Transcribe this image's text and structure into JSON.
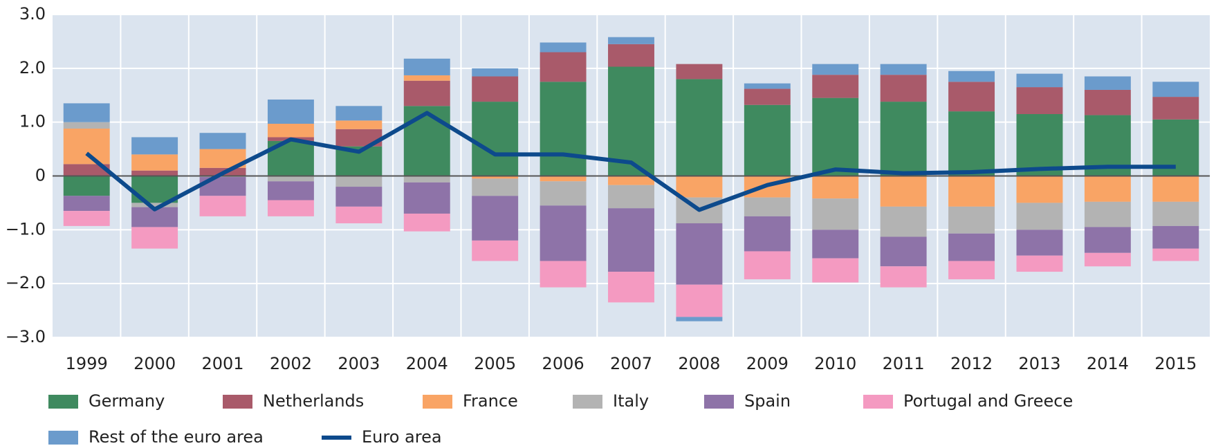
{
  "chart_data": {
    "type": "bar",
    "stacked": true,
    "grid": true,
    "categories": [
      "1999",
      "2000",
      "2001",
      "2002",
      "2003",
      "2004",
      "2005",
      "2006",
      "2007",
      "2008",
      "2009",
      "2010",
      "2011",
      "2012",
      "2013",
      "2014",
      "2015"
    ],
    "ylim": [
      -3,
      3
    ],
    "yticks": [
      {
        "value": -3,
        "label": "−3.0"
      },
      {
        "value": -2,
        "label": "−2.0"
      },
      {
        "value": -1,
        "label": "−1.0"
      },
      0,
      {
        "value": 1,
        "label": "1.0"
      },
      {
        "value": 2,
        "label": "2.0"
      },
      {
        "value": 3,
        "label": "3.0"
      }
    ],
    "series": [
      {
        "name": "Germany",
        "color": "#3f8a5f",
        "values": [
          -0.37,
          -0.5,
          0,
          0.65,
          0.55,
          1.3,
          1.38,
          1.75,
          2.03,
          1.8,
          1.32,
          1.45,
          1.38,
          1.2,
          1.15,
          1.13,
          1.05
        ]
      },
      {
        "name": "Netherlands",
        "color": "#a95a6a",
        "values": [
          0.22,
          0.1,
          0.15,
          0.07,
          0.32,
          0.47,
          0.47,
          0.55,
          0.42,
          0.28,
          0.3,
          0.43,
          0.5,
          0.55,
          0.5,
          0.47,
          0.42
        ]
      },
      {
        "name": "France",
        "color": "#f9a465",
        "values": [
          0.66,
          0.3,
          0.35,
          0.25,
          0.16,
          0.1,
          -0.05,
          -0.1,
          -0.17,
          -0.4,
          -0.4,
          -0.42,
          -0.57,
          -0.57,
          -0.5,
          -0.48,
          -0.48
        ]
      },
      {
        "name": "Italy",
        "color": "#b3b3b3",
        "values": [
          0.12,
          -0.08,
          -0.02,
          -0.1,
          -0.2,
          -0.12,
          -0.32,
          -0.45,
          -0.43,
          -0.48,
          -0.35,
          -0.58,
          -0.56,
          -0.5,
          -0.5,
          -0.47,
          -0.45
        ]
      },
      {
        "name": "Spain",
        "color": "#8e73a8",
        "values": [
          -0.28,
          -0.37,
          -0.35,
          -0.35,
          -0.37,
          -0.58,
          -0.83,
          -1.03,
          -1.18,
          -1.14,
          -0.65,
          -0.53,
          -0.55,
          -0.51,
          -0.48,
          -0.48,
          -0.42
        ]
      },
      {
        "name": "Portugal and Greece",
        "color": "#f49ac1",
        "values": [
          -0.28,
          -0.4,
          -0.38,
          -0.3,
          -0.31,
          -0.33,
          -0.38,
          -0.49,
          -0.57,
          -0.6,
          -0.52,
          -0.45,
          -0.39,
          -0.34,
          -0.3,
          -0.25,
          -0.23
        ]
      },
      {
        "name": "Rest of the euro area",
        "color": "#6b9bcc",
        "values": [
          0.35,
          0.32,
          0.3,
          0.45,
          0.27,
          0.31,
          0.15,
          0.18,
          0.13,
          -0.08,
          0.1,
          0.2,
          0.2,
          0.2,
          0.25,
          0.25,
          0.28
        ]
      },
      {
        "name": "Euro area",
        "type": "line",
        "color": "#0d4a8c",
        "values": [
          0.42,
          -0.62,
          0.05,
          0.68,
          0.45,
          1.17,
          0.4,
          0.4,
          0.25,
          -0.63,
          -0.17,
          0.12,
          0.05,
          0.07,
          0.13,
          0.17,
          0.17
        ]
      }
    ]
  }
}
